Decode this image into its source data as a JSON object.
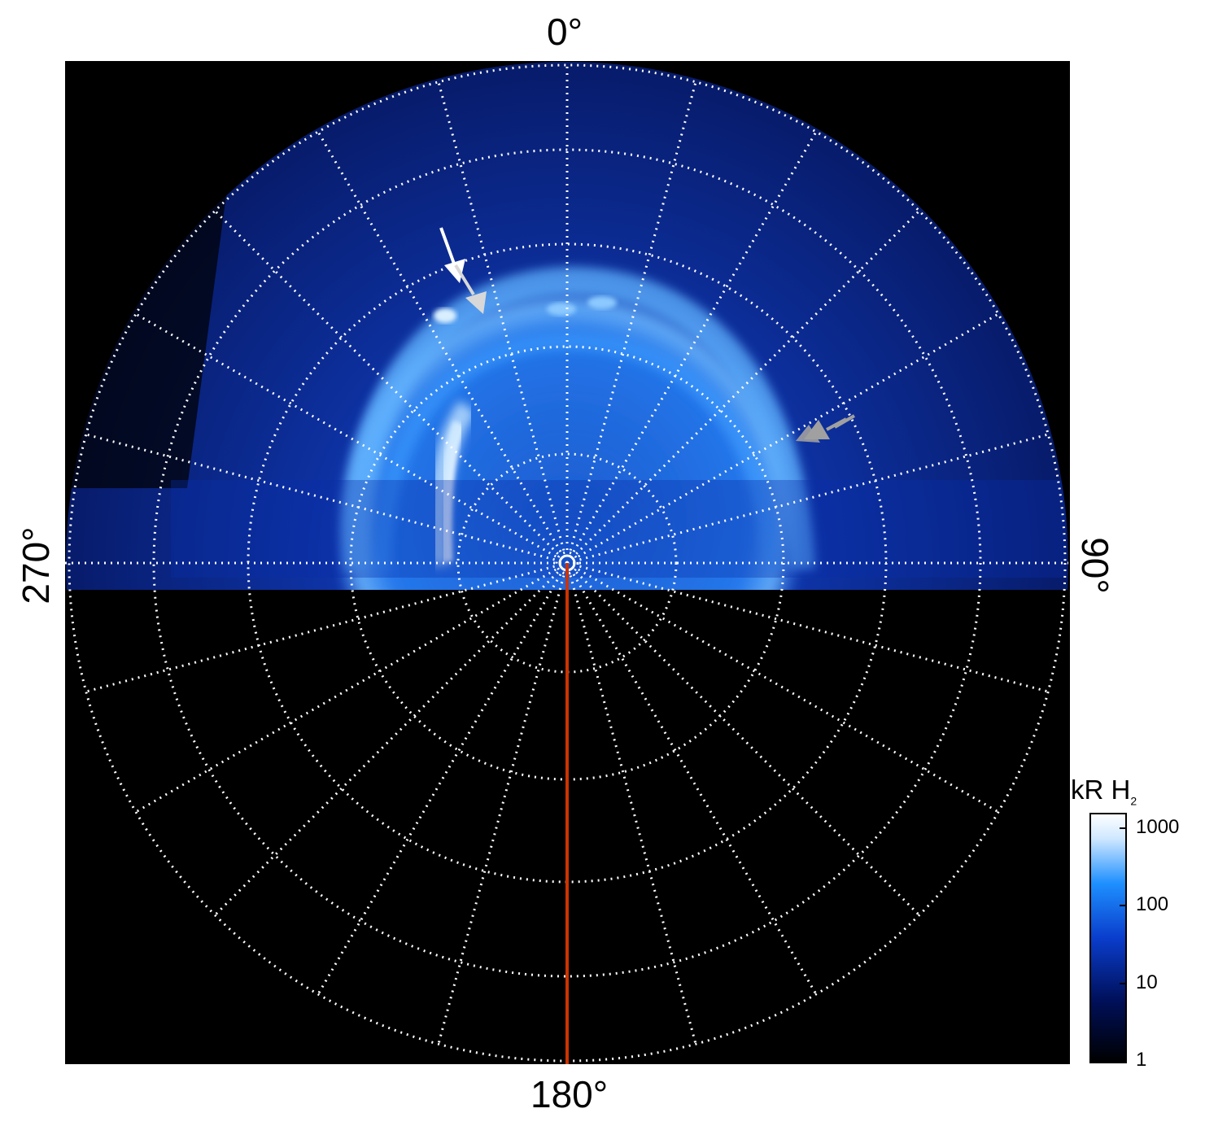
{
  "projection": {
    "direction_labels": {
      "top": "0°",
      "right": "90°",
      "bottom": "180°",
      "left": "270°"
    }
  },
  "colorbar": {
    "title_main": "kR H",
    "title_sub": "2",
    "ticks": [
      "1000",
      "100",
      "10",
      "1"
    ],
    "scale": "log",
    "range": [
      1,
      1000
    ],
    "colors": [
      "#000000",
      "#00105a",
      "#0a3dcc",
      "#1e90ff",
      "#cfe8ff",
      "#ffffff"
    ]
  },
  "colors": {
    "background": "#000000",
    "grid": "#ffffff",
    "meridian": "#cc3300",
    "arrow_primary": "#ffffff",
    "arrow_secondary": "#a0a0a0"
  }
}
